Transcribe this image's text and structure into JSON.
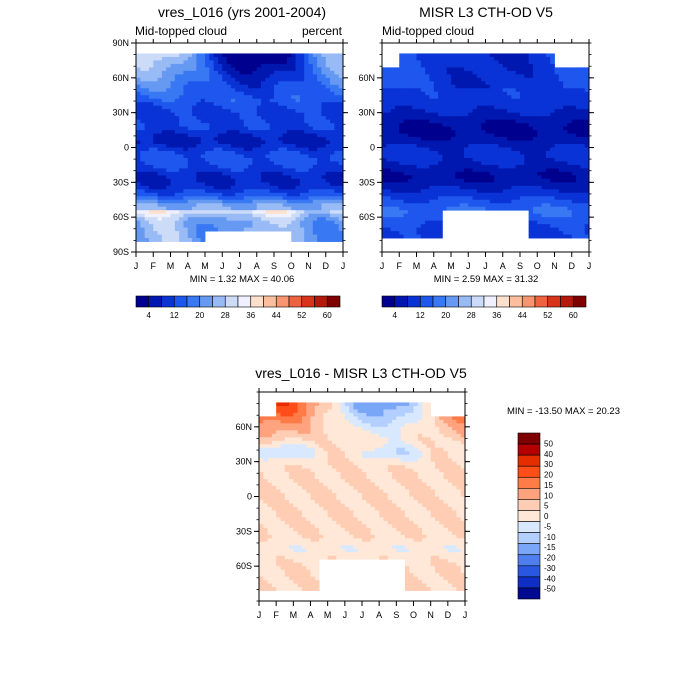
{
  "chart_data": [
    {
      "type": "heatmap",
      "title": "vres_L016 (yrs 2001-2004)",
      "subtitle_left": "Mid-topped cloud",
      "subtitle_right": "percent",
      "x_ticks": [
        "J",
        "F",
        "M",
        "A",
        "M",
        "J",
        "J",
        "A",
        "S",
        "O",
        "N",
        "D",
        "J"
      ],
      "y_ticks": [
        "90N",
        "60N",
        "30N",
        "0",
        "30S",
        "60S",
        "90S"
      ],
      "stats": "MIN =   1.32 MAX =  40.06",
      "colorbar_labels": [
        "4",
        "12",
        "20",
        "28",
        "36",
        "44",
        "52",
        "60"
      ]
    },
    {
      "type": "heatmap",
      "title": "MISR L3 CTH-OD V5",
      "subtitle_left": "Mid-topped cloud",
      "x_ticks": [
        "J",
        "F",
        "M",
        "A",
        "M",
        "J",
        "J",
        "A",
        "S",
        "O",
        "N",
        "D",
        "J"
      ],
      "y_ticks": [
        "60N",
        "30N",
        "0",
        "30S",
        "60S"
      ],
      "stats": "MIN =   2.59 MAX =  31.32",
      "colorbar_labels": [
        "4",
        "12",
        "20",
        "28",
        "36",
        "44",
        "52",
        "60"
      ]
    },
    {
      "type": "heatmap",
      "title": "vres_L016 - MISR L3 CTH-OD V5",
      "x_ticks": [
        "J",
        "F",
        "M",
        "A",
        "M",
        "J",
        "J",
        "A",
        "S",
        "O",
        "N",
        "D",
        "J"
      ],
      "y_ticks": [
        "60N",
        "30N",
        "0",
        "30S",
        "60S"
      ],
      "stats": "MIN = -13.50 MAX =  20.23",
      "colorbar_labels": [
        "50",
        "40",
        "30",
        "20",
        "15",
        "10",
        "5",
        "0",
        "-5",
        "-10",
        "-15",
        "-20",
        "-30",
        "-40",
        "-50"
      ]
    }
  ],
  "colors": {
    "seq": [
      "#00008f",
      "#0018b0",
      "#0a33d6",
      "#1e57ee",
      "#3878f2",
      "#6699f2",
      "#99bbf5",
      "#ccdcf8",
      "#f0f0ff",
      "#fde0cc",
      "#fcbe9e",
      "#f89570",
      "#ef6240",
      "#d8341b",
      "#b41a0a",
      "#7f0000"
    ],
    "div": [
      "#7f0000",
      "#b30000",
      "#e62d00",
      "#ff4d19",
      "#ff7b47",
      "#ffa37f",
      "#ffcdb3",
      "#ffe8d7",
      "#d8e8ff",
      "#b2cfff",
      "#7aa6f8",
      "#4f7fef",
      "#2a57e2",
      "#0f2fc4",
      "#000a90"
    ]
  }
}
